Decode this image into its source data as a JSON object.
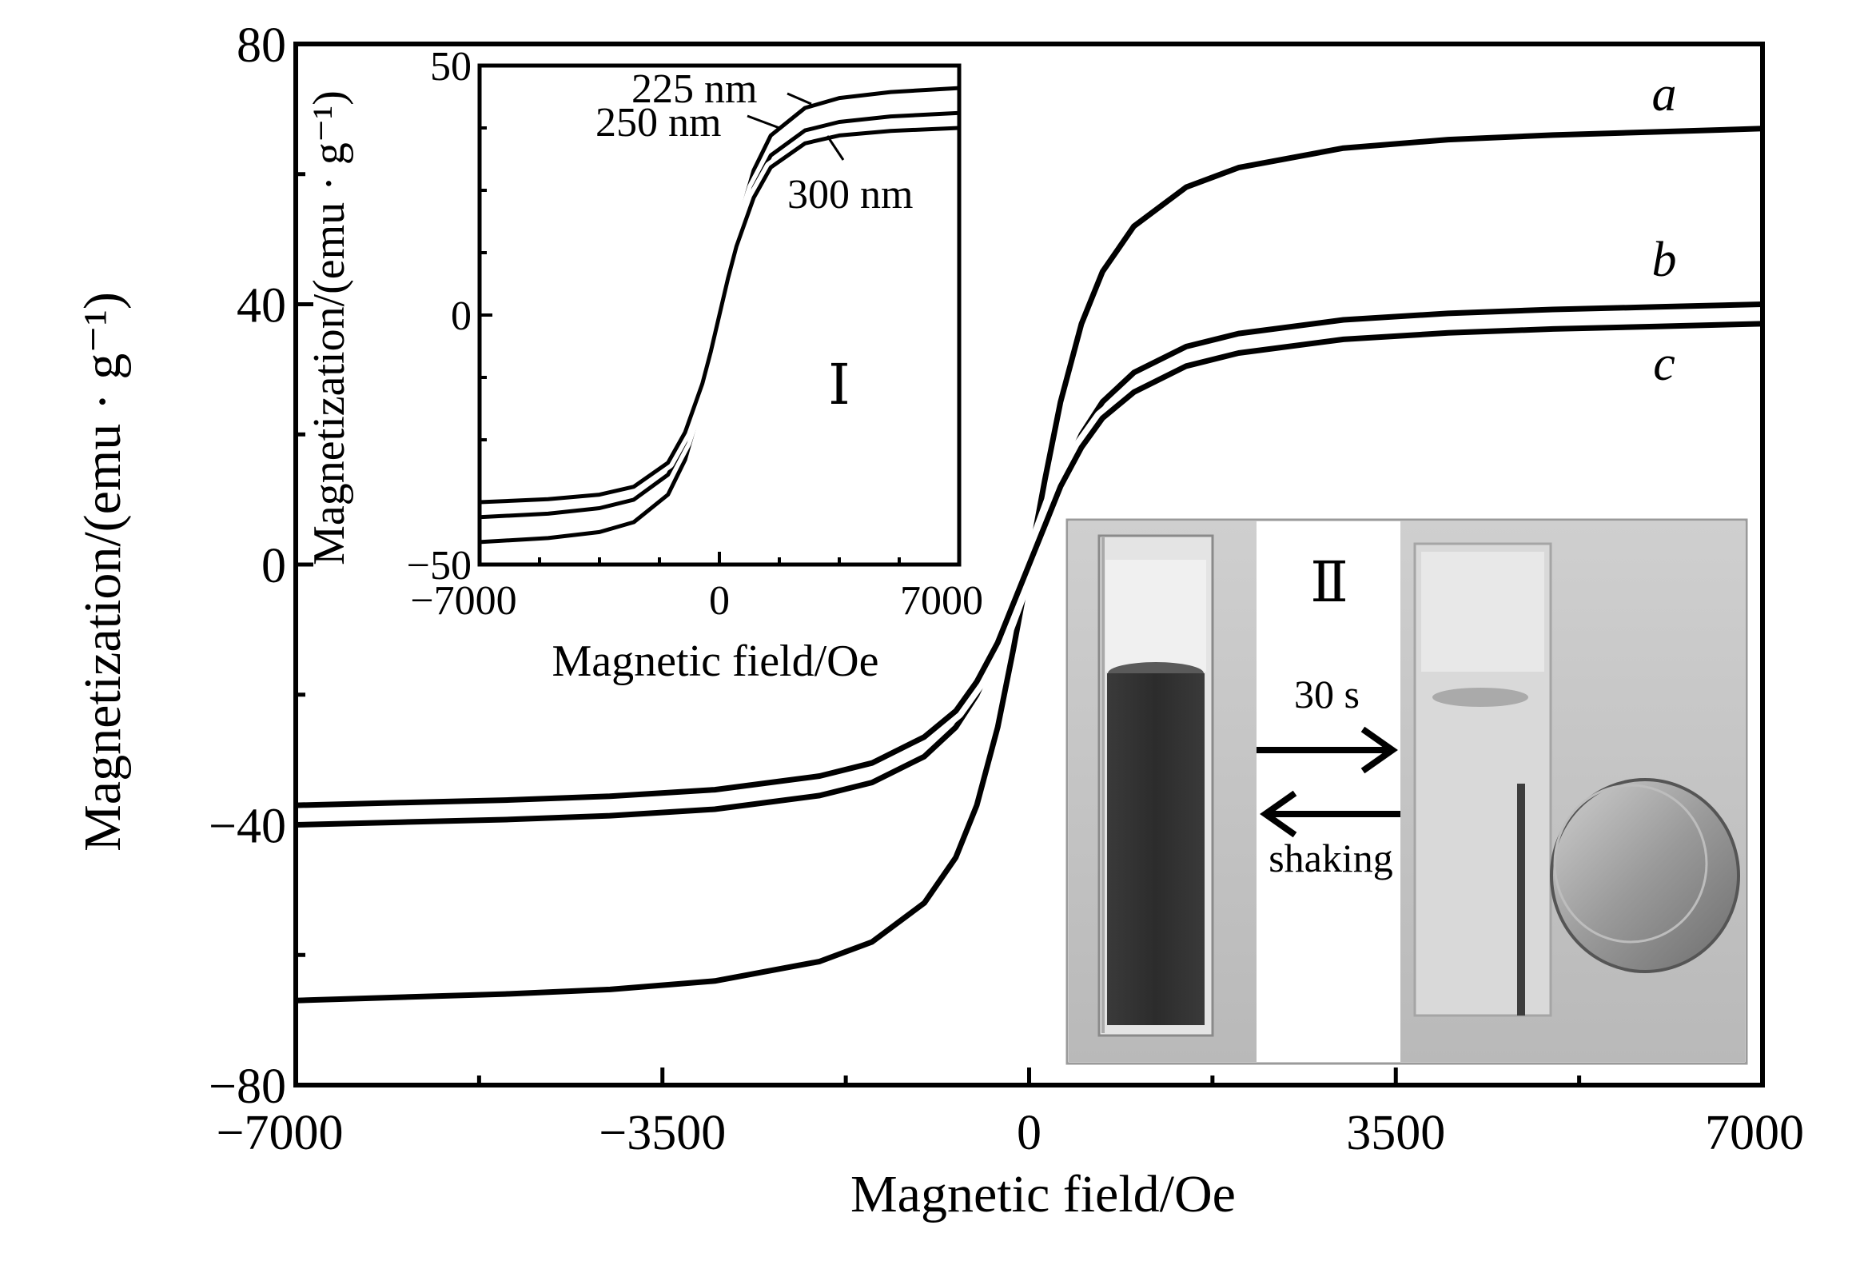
{
  "chart_data": [
    {
      "type": "line",
      "title": "",
      "xlabel": "Magnetic field/Oe",
      "ylabel": "Magnetization/(emu · g⁻¹)",
      "xlim": [
        -7000,
        7000
      ],
      "ylim": [
        -80,
        80
      ],
      "x_ticks": [
        -7000,
        -3500,
        0,
        3500,
        7000
      ],
      "x_tick_labels": [
        "−7000",
        "−3500",
        "0",
        "3500",
        "7000"
      ],
      "y_ticks": [
        -80,
        -40,
        0,
        40,
        80
      ],
      "y_tick_labels": [
        "−80",
        "−40",
        "0",
        "40",
        "80"
      ],
      "grid": false,
      "legend": "none",
      "series": [
        {
          "name": "a",
          "x": [
            -7000,
            -6000,
            -5000,
            -4000,
            -3000,
            -2000,
            -1500,
            -1000,
            -700,
            -500,
            -300,
            -150,
            0,
            150,
            300,
            500,
            700,
            1000,
            1500,
            2000,
            3000,
            4000,
            5000,
            6000,
            7000
          ],
          "y": [
            -67,
            -66.5,
            -66,
            -65.3,
            -64,
            -61,
            -58,
            -52,
            -45,
            -37,
            -25,
            -13,
            0,
            13,
            25,
            37,
            45,
            52,
            58,
            61,
            64,
            65.3,
            66,
            66.5,
            67
          ]
        },
        {
          "name": "b",
          "x": [
            -7000,
            -6000,
            -5000,
            -4000,
            -3000,
            -2000,
            -1500,
            -1000,
            -700,
            -500,
            -300,
            -150,
            0,
            150,
            300,
            500,
            700,
            1000,
            1500,
            2000,
            3000,
            4000,
            5000,
            6000,
            7000
          ],
          "y": [
            -40,
            -39.6,
            -39.2,
            -38.6,
            -37.6,
            -35.5,
            -33.5,
            -29.5,
            -25,
            -20,
            -13,
            -6.5,
            0,
            6.5,
            13,
            20,
            25,
            29.5,
            33.5,
            35.5,
            37.6,
            38.6,
            39.2,
            39.6,
            40
          ]
        },
        {
          "name": "c",
          "x": [
            -7000,
            -6000,
            -5000,
            -4000,
            -3000,
            -2000,
            -1500,
            -1000,
            -700,
            -500,
            -300,
            -150,
            0,
            150,
            300,
            500,
            700,
            1000,
            1500,
            2000,
            3000,
            4000,
            5000,
            6000,
            7000
          ],
          "y": [
            -37,
            -36.6,
            -36.2,
            -35.6,
            -34.6,
            -32.5,
            -30.5,
            -26.5,
            -22.5,
            -18,
            -12,
            -6,
            0,
            6,
            12,
            18,
            22.5,
            26.5,
            30.5,
            32.5,
            34.6,
            35.6,
            36.2,
            36.6,
            37
          ]
        }
      ],
      "annotations": [
        "a",
        "b",
        "c"
      ]
    },
    {
      "type": "line",
      "title": "",
      "xlabel": "Magnetic field/Oe",
      "ylabel": "Magnetization/(emu · g⁻¹)",
      "xlim": [
        -7000,
        7000
      ],
      "ylim": [
        -50,
        50
      ],
      "x_ticks": [
        -7000,
        0,
        7000
      ],
      "x_tick_labels": [
        "−7000",
        "0",
        "7000"
      ],
      "y_ticks": [
        -50,
        0,
        50
      ],
      "y_tick_labels": [
        "−50",
        "0",
        "50"
      ],
      "grid": false,
      "legend": "none",
      "series": [
        {
          "name": "225 nm",
          "x": [
            -7000,
            -5000,
            -3500,
            -2500,
            -1500,
            -1000,
            -500,
            -250,
            0,
            250,
            500,
            1000,
            1500,
            2500,
            3500,
            5000,
            7000
          ],
          "y": [
            -45.5,
            -44.7,
            -43.5,
            -41.5,
            -36,
            -29,
            -17,
            -9,
            0,
            9,
            17,
            29,
            36,
            41.5,
            43.5,
            44.7,
            45.5
          ]
        },
        {
          "name": "250 nm",
          "x": [
            -7000,
            -5000,
            -3500,
            -2500,
            -1500,
            -1000,
            -500,
            -250,
            0,
            250,
            500,
            1000,
            1500,
            2500,
            3500,
            5000,
            7000
          ],
          "y": [
            -40.5,
            -39.8,
            -38.7,
            -37,
            -32,
            -25.5,
            -15,
            -8,
            0,
            8,
            15,
            25.5,
            32,
            37,
            38.7,
            39.8,
            40.5
          ]
        },
        {
          "name": "300 nm",
          "x": [
            -7000,
            -5000,
            -3500,
            -2500,
            -1500,
            -1000,
            -500,
            -250,
            0,
            250,
            500,
            1000,
            1500,
            2500,
            3500,
            5000,
            7000
          ],
          "y": [
            -37.5,
            -36.9,
            -36,
            -34.4,
            -29.6,
            -23.5,
            -13.8,
            -7.3,
            0,
            7.3,
            13.8,
            23.5,
            29.6,
            34.4,
            36,
            36.9,
            37.5
          ]
        }
      ],
      "annotations": [
        "225 nm",
        "250 nm",
        "300 nm",
        "Ⅰ"
      ]
    }
  ],
  "photo": {
    "label": "Ⅱ",
    "forward_label": "30 s",
    "back_label": "shaking"
  }
}
